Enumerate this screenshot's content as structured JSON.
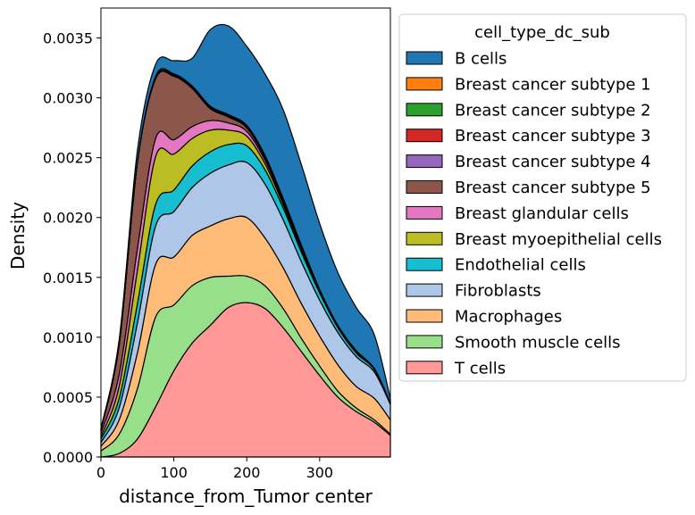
{
  "chart_data": {
    "type": "area",
    "stacked": true,
    "xlabel": "distance_from_Tumor center",
    "ylabel": "Density",
    "xlim": [
      0,
      397
    ],
    "ylim": [
      0,
      0.00375
    ],
    "x_ticks": [
      0,
      100,
      200,
      300
    ],
    "y_ticks": [
      "0.0000",
      "0.0005",
      "0.0010",
      "0.0015",
      "0.0020",
      "0.0025",
      "0.0030",
      "0.0035"
    ],
    "grid": false,
    "legend": {
      "title": "cell_type_dc_sub",
      "position": "outside-right"
    },
    "x": [
      0,
      25,
      50,
      75,
      100,
      125,
      150,
      175,
      200,
      225,
      250,
      275,
      300,
      325,
      350,
      375,
      397
    ],
    "series": [
      {
        "name": "T cells",
        "color": "#ff9896",
        "values": [
          0.0,
          3e-05,
          0.00015,
          0.00042,
          0.00072,
          0.00095,
          0.0011,
          0.00125,
          0.00129,
          0.00124,
          0.00108,
          0.00088,
          0.00068,
          0.0005,
          0.00038,
          0.00029,
          0.00018
        ]
      },
      {
        "name": "Smooth muscle cells",
        "color": "#98df8a",
        "values": [
          5e-05,
          0.00016,
          0.00042,
          0.00075,
          0.00055,
          0.00048,
          0.0004,
          0.00026,
          0.00022,
          0.00019,
          0.00016,
          0.00011,
          8e-05,
          5e-05,
          3e-05,
          2e-05,
          1e-05
        ]
      },
      {
        "name": "Macrophages",
        "color": "#ffbb78",
        "values": [
          4e-05,
          0.00012,
          0.0003,
          0.00044,
          0.0004,
          0.00042,
          0.00043,
          0.00048,
          0.00049,
          0.0004,
          0.00034,
          0.00029,
          0.00025,
          0.00022,
          0.00018,
          0.00018,
          0.00012
        ]
      },
      {
        "name": "Fibroblasts",
        "color": "#aec7e8",
        "values": [
          3e-05,
          0.0001,
          0.00025,
          0.00032,
          0.00038,
          0.0004,
          0.00044,
          0.00045,
          0.00046,
          0.00045,
          0.0004,
          0.00035,
          0.0003,
          0.00027,
          0.00025,
          0.00022,
          0.00013
        ]
      },
      {
        "name": "Endothelial cells",
        "color": "#17becf",
        "values": [
          3e-05,
          8e-05,
          0.00016,
          0.00018,
          0.00018,
          0.00018,
          0.00018,
          0.00017,
          0.00014,
          0.00012,
          0.0001,
          8e-05,
          6e-05,
          4e-05,
          3e-05,
          2e-05,
          1e-05
        ]
      },
      {
        "name": "Breast myoepithelial cells",
        "color": "#bcbd22",
        "values": [
          2e-05,
          0.0001,
          0.00028,
          0.0004,
          0.0003,
          0.00023,
          0.00018,
          0.00012,
          8e-05,
          5e-05,
          3e-05,
          2e-05,
          1e-05,
          1e-05,
          1e-05,
          1e-05,
          0.0
        ]
      },
      {
        "name": "Breast glandular cells",
        "color": "#e377c2",
        "values": [
          3e-05,
          0.0001,
          0.00018,
          0.00015,
          0.00012,
          0.0001,
          8e-05,
          6e-05,
          4e-05,
          3e-05,
          2e-05,
          1e-05,
          1e-05,
          0.0,
          0.0,
          0.0,
          0.0
        ]
      },
      {
        "name": "Breast cancer subtype 5",
        "color": "#8c564b",
        "values": [
          3e-05,
          0.00025,
          0.00072,
          0.0005,
          0.00053,
          0.00032,
          0.0001,
          5e-05,
          3e-05,
          2e-05,
          1e-05,
          1e-05,
          0.0,
          0.0,
          0.0,
          0.0,
          0.0
        ]
      },
      {
        "name": "Breast cancer subtype 4",
        "color": "#9467bd",
        "values": [
          0.0,
          0.0,
          0.0,
          0.0,
          0.0,
          0.0,
          0.0,
          0.0,
          0.0,
          0.0,
          0.0,
          0.0,
          0.0,
          0.0,
          0.0,
          0.0,
          0.0
        ]
      },
      {
        "name": "Breast cancer subtype 3",
        "color": "#d62728",
        "values": [
          0.0,
          0.0,
          0.0,
          1e-05,
          1e-05,
          1e-05,
          1e-05,
          1e-05,
          1e-05,
          1e-05,
          1e-05,
          1e-05,
          0.0,
          0.0,
          0.0,
          0.0,
          0.0
        ]
      },
      {
        "name": "Breast cancer subtype 2",
        "color": "#2ca02c",
        "values": [
          0.0,
          0.0,
          0.0,
          0.0,
          0.0,
          0.0,
          0.0,
          0.0,
          0.0,
          0.0,
          0.0,
          0.0,
          0.0,
          0.0,
          0.0,
          0.0,
          0.0
        ]
      },
      {
        "name": "Breast cancer subtype 1",
        "color": "#ff7f0e",
        "values": [
          0.0,
          0.0,
          0.0,
          1e-05,
          1e-05,
          1e-05,
          1e-05,
          1e-05,
          1e-05,
          1e-05,
          1e-05,
          1e-05,
          1e-05,
          1e-05,
          1e-05,
          0.0,
          0.0
        ]
      },
      {
        "name": "B cells",
        "color": "#1f77b4",
        "values": [
          1e-05,
          4e-05,
          0.0001,
          0.0001,
          0.00011,
          0.00023,
          0.00064,
          0.00074,
          0.00066,
          0.00068,
          0.00074,
          0.00067,
          0.00055,
          0.00044,
          0.00036,
          0.00028,
          4e-05
        ]
      }
    ],
    "legend_order": [
      "B cells",
      "Breast cancer subtype 1",
      "Breast cancer subtype 2",
      "Breast cancer subtype 3",
      "Breast cancer subtype 4",
      "Breast cancer subtype 5",
      "Breast glandular cells",
      "Breast myoepithelial cells",
      "Endothelial cells",
      "Fibroblasts",
      "Macrophages",
      "Smooth muscle cells",
      "T cells"
    ]
  }
}
